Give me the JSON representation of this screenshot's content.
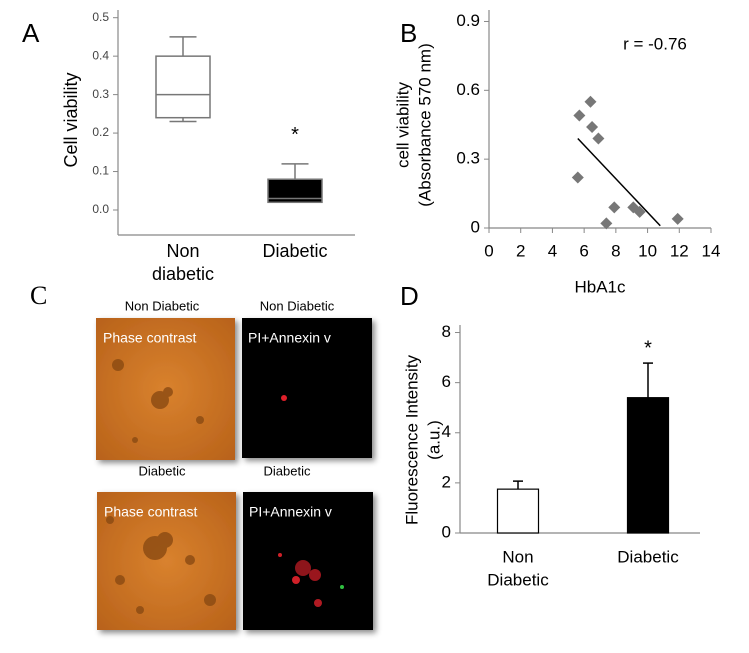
{
  "chart_data": [
    {
      "type": "box",
      "label": "A",
      "ylabel": "Cell viability",
      "categories": [
        [
          "Non",
          "diabetic"
        ],
        [
          "Diabetic"
        ]
      ],
      "boxes": [
        {
          "whisker_low": 0.23,
          "q1": 0.24,
          "median": 0.3,
          "q3": 0.4,
          "whisker_high": 0.45
        },
        {
          "whisker_low": 0.02,
          "q1": 0.02,
          "median": 0.03,
          "q3": 0.08,
          "whisker_high": 0.12
        }
      ],
      "colors": [
        "#ffffff",
        "#000000"
      ],
      "annotation": "*",
      "ylim": [
        -0.065,
        0.52
      ],
      "yticks": [
        {
          "value": 0,
          "label": "0.0"
        },
        0.1,
        0.2,
        0.3,
        0.4,
        0.5
      ]
    },
    {
      "type": "scatter",
      "label": "B",
      "xlabel": "HbA1c",
      "ylabel": [
        "cell viability",
        "(Absorbance 570 nm)"
      ],
      "annotation": "r = -0.76",
      "x": [
        5.7,
        6.4,
        6.5,
        6.9,
        5.6,
        7.9,
        7.4,
        9.1,
        9.5,
        11.9
      ],
      "y": [
        0.49,
        0.55,
        0.44,
        0.39,
        0.22,
        0.09,
        0.02,
        0.09,
        0.07,
        0.04
      ],
      "color": "#777777",
      "trendline": {
        "x": [
          5.6,
          10.8
        ],
        "y": [
          0.39,
          0.01
        ]
      },
      "xlim": [
        0,
        14
      ],
      "xticks": [
        0,
        2,
        4,
        6,
        8,
        10,
        12,
        14
      ],
      "ylim": [
        0,
        0.95
      ],
      "yticks": [
        0,
        0.3,
        0.6,
        0.9
      ]
    },
    {
      "type": "bar",
      "label": "D",
      "ylabel": [
        "Fluorescence Intensity",
        "(a.u.)"
      ],
      "categories": [
        [
          "Non",
          "Diabetic"
        ],
        [
          "Diabetic"
        ]
      ],
      "values": [
        1.75,
        5.4
      ],
      "errors": [
        0.32,
        1.38
      ],
      "colors": [
        "#ffffff",
        "#000000"
      ],
      "annotation": "*",
      "ylim": [
        0,
        8.3
      ],
      "yticks": [
        0,
        2,
        4,
        6,
        8
      ]
    }
  ],
  "panel_c": {
    "label": "C",
    "images": [
      {
        "caption": "Non Diabetic",
        "overlay": "Phase contrast"
      },
      {
        "caption": "Non Diabetic",
        "overlay": "PI+Annexin v"
      },
      {
        "caption": "Diabetic",
        "overlay": "Phase contrast"
      },
      {
        "caption": "Diabetic",
        "overlay": "PI+Annexin v"
      }
    ]
  }
}
